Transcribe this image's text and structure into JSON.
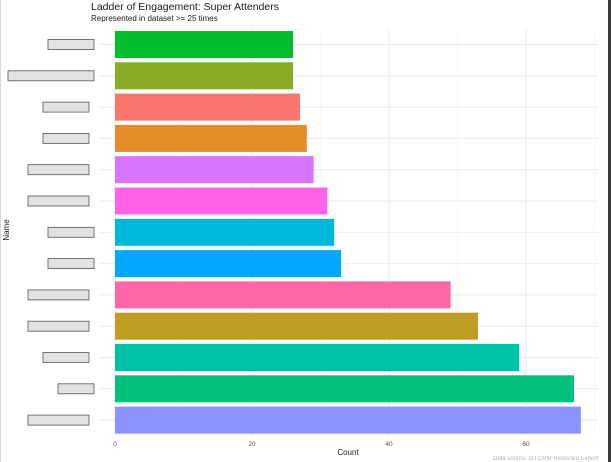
{
  "chart_data": {
    "type": "bar",
    "orientation": "horizontal",
    "title": "Ladder of Engagement: Super Attenders",
    "subtitle": "Represented in dataset >= 25 times",
    "xlabel": "Count",
    "ylabel": "Name",
    "xlim": [
      0,
      68
    ],
    "xticks": [
      0,
      20,
      40,
      60
    ],
    "grid": true,
    "legend": "none",
    "caption": "Data source: D.I.CRM Redacted Export",
    "categories": [
      "",
      "",
      "",
      "",
      "",
      "",
      "",
      "",
      "",
      "",
      "",
      "",
      ""
    ],
    "values": [
      26,
      26,
      27,
      28,
      29,
      31,
      32,
      33,
      49,
      53,
      59,
      67,
      68
    ],
    "colors": [
      "#00BE2D",
      "#8CAB24",
      "#F8766D",
      "#E58B28",
      "#D874FD",
      "#FF62E6",
      "#00B9D9",
      "#00A9FF",
      "#FF66A8",
      "#BF9C24",
      "#00C1A6",
      "#00C27A",
      "#8B93FF"
    ],
    "redacted_label_widths": [
      46,
      86,
      46,
      46,
      61,
      61,
      46,
      46,
      61,
      61,
      46,
      36,
      61
    ]
  }
}
